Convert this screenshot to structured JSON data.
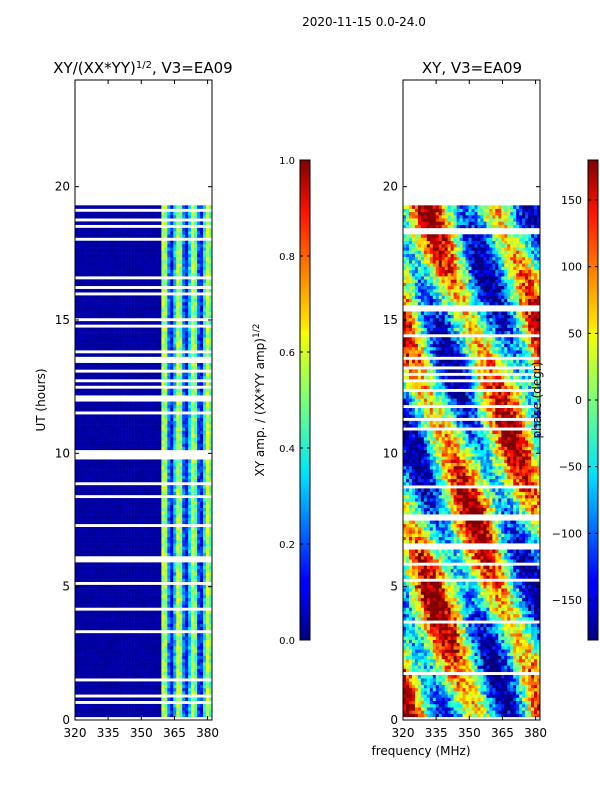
{
  "figure_title": "2020-11-15 0.0-24.0",
  "chart_data": [
    {
      "type": "heatmap",
      "title": "XY/(XX*YY)",
      "title_sup": "1/2",
      "title_suffix": ", V3=EA09",
      "xlabel": "",
      "ylabel": "UT (hours)",
      "xlim": [
        320,
        382
      ],
      "ylim": [
        0,
        24
      ],
      "xticks": [
        "320",
        "335",
        "350",
        "365",
        "380"
      ],
      "xtick_values": [
        320,
        335,
        350,
        365,
        380
      ],
      "yticks": [
        "0",
        "5",
        "10",
        "15",
        "20"
      ],
      "ytick_values": [
        0,
        5,
        10,
        15,
        20
      ],
      "data_extent_hours": [
        0,
        19.3
      ],
      "colorbar": {
        "label": "XY amp. / (XX*YY amp)",
        "label_sup": "1/2",
        "range": [
          0.0,
          1.0
        ],
        "ticks": [
          "0.0",
          "0.2",
          "0.4",
          "0.6",
          "0.8",
          "1.0"
        ],
        "tick_values": [
          0.0,
          0.2,
          0.4,
          0.6,
          0.8,
          1.0
        ],
        "colormap": "jet"
      },
      "description": "low amplitude (~0) across 320-358 MHz; elevated amplitude (~0.3-0.6) in bands near 360-381 MHz"
    },
    {
      "type": "heatmap",
      "title": "XY, V3=EA09",
      "xlabel": "frequency (MHz)",
      "ylabel": "",
      "xlim": [
        320,
        382
      ],
      "ylim": [
        0,
        24
      ],
      "xticks": [
        "320",
        "335",
        "350",
        "365",
        "380"
      ],
      "xtick_values": [
        320,
        335,
        350,
        365,
        380
      ],
      "yticks": [
        "0",
        "5",
        "10",
        "15",
        "20"
      ],
      "ytick_values": [
        0,
        5,
        10,
        15,
        20
      ],
      "data_extent_hours": [
        0,
        19.3
      ],
      "colorbar": {
        "label": "phase (degr)",
        "range": [
          -180,
          180
        ],
        "ticks": [
          "−150",
          "−100",
          "−50",
          "0",
          "50",
          "100",
          "150"
        ],
        "tick_values": [
          -150,
          -100,
          -50,
          0,
          50,
          100,
          150
        ],
        "colormap": "jet"
      },
      "description": "phase varies widely between -180 and 180 degrees with diagonal streaks"
    }
  ]
}
